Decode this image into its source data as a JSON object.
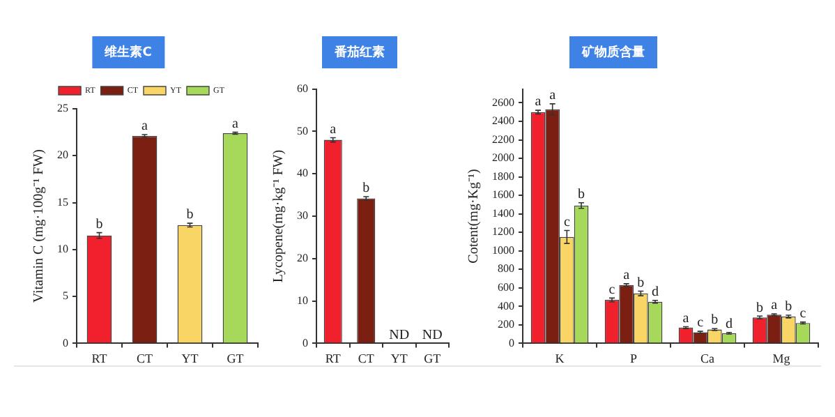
{
  "chart_data": [
    {
      "type": "bar",
      "title": "维生素C",
      "ylabel": "Vitamin C (mg·100g⁻¹ FW)",
      "categories": [
        "RT",
        "CT",
        "YT",
        "GT"
      ],
      "legend": "top",
      "series": [
        {
          "name": "RT",
          "color": "#f0202c",
          "values": [
            11.5,
            null,
            null,
            null
          ],
          "errors": [
            0.3,
            null,
            null,
            null
          ],
          "value_labels": [
            "b",
            null,
            null,
            null
          ]
        },
        {
          "name": "CT",
          "color": "#7b1f12",
          "values": [
            null,
            22.1,
            null,
            null
          ],
          "errors": [
            null,
            0.15,
            null,
            null
          ],
          "value_labels": [
            null,
            "a",
            null,
            null
          ]
        },
        {
          "name": "YT",
          "color": "#f9d565",
          "values": [
            null,
            null,
            12.6,
            null
          ],
          "errors": [
            null,
            null,
            0.2,
            null
          ],
          "value_labels": [
            null,
            null,
            "b",
            null
          ]
        },
        {
          "name": "GT",
          "color": "#a6d95a",
          "values": [
            null,
            null,
            null,
            22.4
          ],
          "errors": [
            null,
            null,
            null,
            0.1
          ],
          "value_labels": [
            null,
            null,
            null,
            "a"
          ]
        }
      ],
      "ylim": [
        0,
        25
      ],
      "yticks": [
        0,
        5,
        10,
        15,
        20,
        25
      ]
    },
    {
      "type": "bar",
      "title": "番茄红素",
      "ylabel": "Lycopene(mg·kg⁻¹ FW)",
      "categories": [
        "RT",
        "CT",
        "YT",
        "GT"
      ],
      "values": [
        48,
        34.2,
        null,
        null
      ],
      "colors": [
        "#f0202c",
        "#7b1f12",
        "#f9d565",
        "#a6d95a"
      ],
      "errors": [
        0.5,
        0.4,
        null,
        null
      ],
      "value_labels": [
        "a",
        "b",
        "ND",
        "ND"
      ],
      "ylim": [
        0,
        60
      ],
      "yticks": [
        0,
        10,
        20,
        30,
        40,
        50,
        60
      ]
    },
    {
      "type": "bar",
      "title": "矿物质含量",
      "ylabel": "Cotent(mg·Kg⁻¹)",
      "categories": [
        "K",
        "P",
        "Ca",
        "Mg"
      ],
      "series": [
        {
          "color": "#f0202c",
          "values": [
            2500,
            470,
            170,
            280
          ],
          "errors": [
            20,
            20,
            10,
            15
          ],
          "value_labels": [
            "a",
            "c",
            "a",
            "b"
          ]
        },
        {
          "color": "#7b1f12",
          "values": [
            2530,
            630,
            120,
            310
          ],
          "errors": [
            60,
            15,
            10,
            10
          ],
          "value_labels": [
            "a",
            "a",
            "c",
            "a"
          ]
        },
        {
          "color": "#f9d565",
          "values": [
            1150,
            540,
            150,
            290
          ],
          "errors": [
            70,
            25,
            10,
            15
          ],
          "value_labels": [
            "c",
            "b",
            "b",
            "b"
          ]
        },
        {
          "color": "#a6d95a",
          "values": [
            1490,
            450,
            110,
            220
          ],
          "errors": [
            30,
            15,
            8,
            10
          ],
          "value_labels": [
            "b",
            "d",
            "d",
            "c"
          ]
        }
      ],
      "ylim": [
        0,
        2750
      ],
      "yticks": [
        0,
        200,
        400,
        600,
        800,
        1000,
        1200,
        1400,
        1600,
        1800,
        2000,
        2200,
        2400,
        2600
      ]
    }
  ]
}
